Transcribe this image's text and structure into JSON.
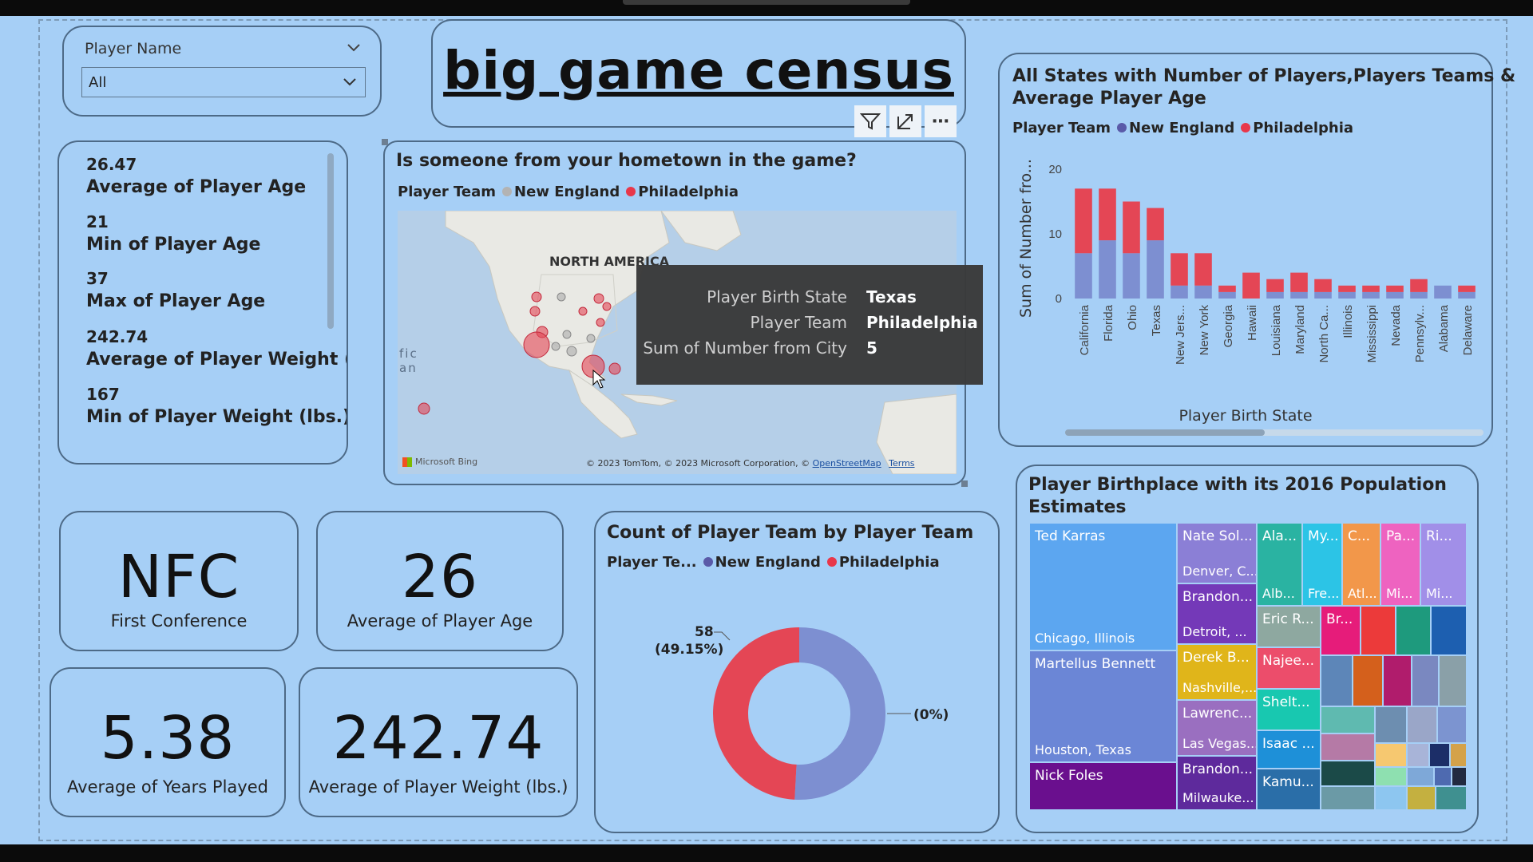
{
  "slicer": {
    "label": "Player Name",
    "value": "All"
  },
  "report_title": "big game census",
  "stats_list": [
    {
      "value": "26.47",
      "label": "Average of Player Age"
    },
    {
      "value": "21",
      "label": "Min of Player Age"
    },
    {
      "value": "37",
      "label": "Max of Player Age"
    },
    {
      "value": "242.74",
      "label": "Average of Player Weight (..."
    },
    {
      "value": "167",
      "label": "Min of Player Weight (lbs.)"
    }
  ],
  "map_visual": {
    "title": "Is someone from your hometown in the game?",
    "legend_title": "Player Team",
    "legend_items": [
      "New England",
      "Philadelphia"
    ],
    "continent_label": "NORTH AMERICA",
    "ocean_label_1": "fic",
    "ocean_label_2": "an",
    "bing_logo": "Microsoft Bing",
    "copyright": "© 2023 TomTom, © 2023 Microsoft Corporation, ©",
    "osm_link": "OpenStreetMap",
    "terms_link": "Terms",
    "tooltip": {
      "rows": [
        {
          "key": "Player Birth State",
          "value": "Texas"
        },
        {
          "key": "Player Team",
          "value": "Philadelphia"
        },
        {
          "key": "Sum of Number from City",
          "value": "5"
        }
      ]
    },
    "toolbar_icons": [
      "filter-icon",
      "focus-mode-icon",
      "more-options-icon"
    ]
  },
  "kpis": {
    "first_conference": {
      "value": "NFC",
      "label": "First Conference"
    },
    "avg_age": {
      "value": "26",
      "label": "Average of Player Age"
    },
    "avg_years": {
      "value": "5.38",
      "label": "Average of Years Played"
    },
    "avg_weight": {
      "value": "242.74",
      "label": "Average of Player Weight (lbs.)"
    }
  },
  "bar_chart": {
    "title_line1": "All States with Number of Players,Players Teams &",
    "title_line2": "Average Player Age",
    "legend_title": "Player Team",
    "legend_items": [
      "New England",
      "Philadelphia"
    ],
    "ylabel": "Sum of Number fro...",
    "xlabel": "Player Birth State"
  },
  "donut_chart": {
    "title": "Count of Player Team by Player Team",
    "legend_title": "Player Te...",
    "legend_items": [
      "New England",
      "Philadelphia"
    ],
    "label_left_value": "58",
    "label_left_pct": "(49.15%)",
    "label_right": "(0%)"
  },
  "treemap": {
    "title_line1": "Player Birthplace with its 2016 Population",
    "title_line2": "Estimates",
    "tiles": [
      {
        "name": "Ted Karras",
        "sub": "Chicago, Illinois"
      },
      {
        "name": "Martellus Bennett",
        "sub": "Houston, Texas"
      },
      {
        "name": "Nick Foles",
        "sub": ""
      },
      {
        "name": "Nate Sol...",
        "sub": "Denver, C..."
      },
      {
        "name": "Brandon...",
        "sub": "Detroit, ..."
      },
      {
        "name": "Derek B...",
        "sub": "Nashville,..."
      },
      {
        "name": "Lawrenc...",
        "sub": "Las Vegas..."
      },
      {
        "name": "Brandon...",
        "sub": "Milwauke..."
      },
      {
        "name": "Ala...",
        "sub": "Alb..."
      },
      {
        "name": "My...",
        "sub": "Fre..."
      },
      {
        "name": "C...",
        "sub": "Atl..."
      },
      {
        "name": "Pa...",
        "sub": "Mi..."
      },
      {
        "name": "Ri...",
        "sub": "Mi..."
      },
      {
        "name": "Eric R...",
        "sub": ""
      },
      {
        "name": "Br...",
        "sub": ""
      },
      {
        "name": "Najee...",
        "sub": ""
      },
      {
        "name": "Shelt...",
        "sub": ""
      },
      {
        "name": "Isaac ...",
        "sub": ""
      },
      {
        "name": "Kamu...",
        "sub": ""
      }
    ]
  },
  "chart_data": [
    {
      "type": "bar",
      "title": "All States with Number of Players,Players Teams & Average Player Age",
      "xlabel": "Player Birth State",
      "ylabel": "Sum of Number fro...",
      "ylim": [
        0,
        20
      ],
      "yticks": [
        "0",
        "10",
        "20"
      ],
      "categories": [
        "California",
        "Florida",
        "Ohio",
        "Texas",
        "New Jers...",
        "New York",
        "Georgia",
        "Hawaii",
        "Louisiana",
        "Maryland",
        "North Ca...",
        "Illinois",
        "Mississippi",
        "Nevada",
        "Pennsylv...",
        "Alabama",
        "Delaware"
      ],
      "series": [
        {
          "name": "New England",
          "color": "#7d8fd1",
          "values": [
            7,
            9,
            7,
            9,
            2,
            2,
            1,
            0,
            1,
            1,
            1,
            1,
            1,
            1,
            1,
            2,
            1
          ]
        },
        {
          "name": "Philadelphia",
          "color": "#e44655",
          "values": [
            10,
            8,
            8,
            5,
            5,
            5,
            1,
            4,
            2,
            3,
            2,
            1,
            1,
            1,
            2,
            0,
            1
          ]
        }
      ],
      "grid": false,
      "legend": "top-left"
    },
    {
      "type": "pie",
      "title": "Count of Player Team by Player Team",
      "donut": true,
      "slices": [
        {
          "name": "New England",
          "value": 60,
          "color": "#7d8fd1"
        },
        {
          "name": "Philadelphia",
          "value": 58,
          "color": "#e44655"
        }
      ],
      "labels": [
        "58 (49.15%)",
        "(0%)"
      ]
    }
  ]
}
